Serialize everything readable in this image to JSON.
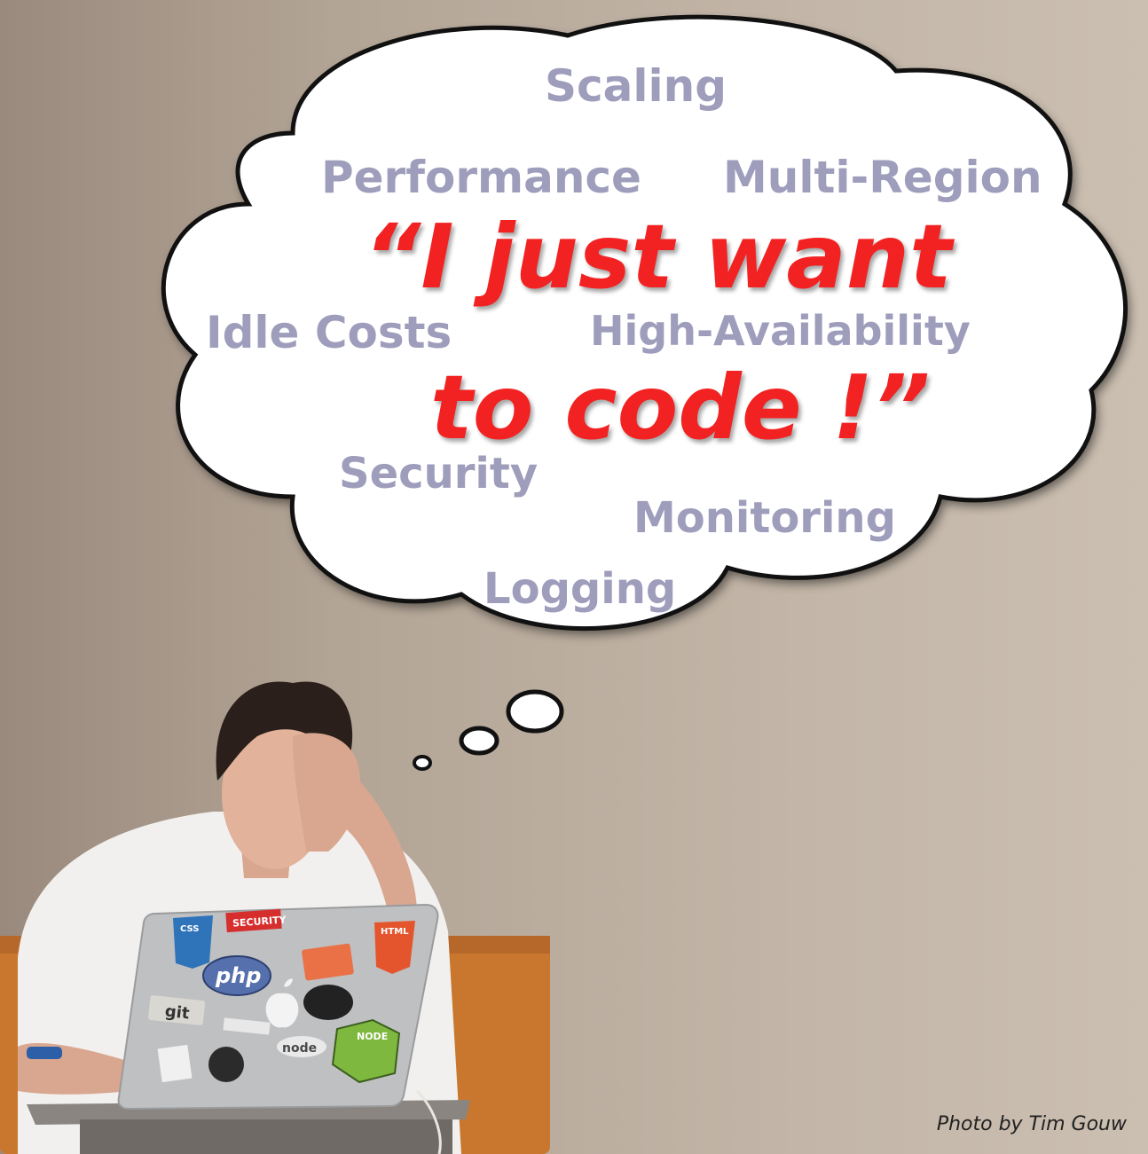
{
  "thought_bubble": {
    "quote_line_1": "“I just want",
    "quote_line_2": "to code !”",
    "words": {
      "scaling": "Scaling",
      "performance": "Performance",
      "multi_region": "Multi-Region",
      "idle_costs": "Idle Costs",
      "high_availability": "High-Availability",
      "security": "Security",
      "monitoring": "Monitoring",
      "logging": "Logging"
    }
  },
  "laptop_stickers": {
    "security": "SECURITY",
    "php": "php",
    "git": "git",
    "html": "HTML",
    "css": "CSS",
    "node": "NODE",
    "nodejs": "node"
  },
  "credit": "Photo by Tim Gouw",
  "colors": {
    "quote": "#f22222",
    "words": "#9e9dbc",
    "wall": "#b3a596",
    "bench": "#c9772e"
  }
}
